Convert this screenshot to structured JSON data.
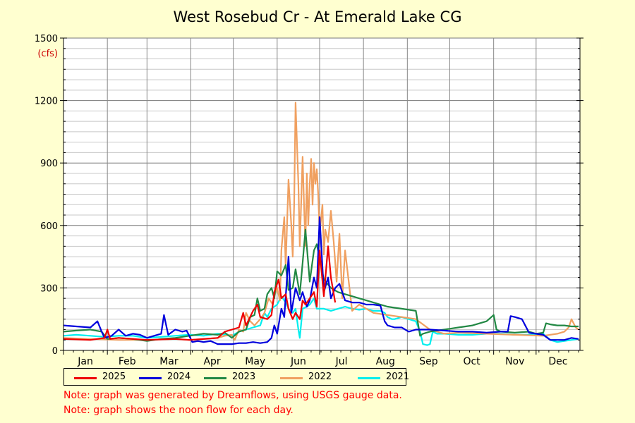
{
  "chart_data": {
    "type": "line",
    "title": "West Rosebud Cr - At Emerald Lake CG",
    "ylabel": "(cfs)",
    "ylim": [
      0,
      1500
    ],
    "yticks": [
      0,
      300,
      600,
      900,
      1200,
      1500
    ],
    "xlim": [
      1,
      366
    ],
    "x_unit": "day of year",
    "months": [
      "Jan",
      "Feb",
      "Mar",
      "Apr",
      "May",
      "Jun",
      "Jul",
      "Aug",
      "Sep",
      "Oct",
      "Nov",
      "Dec"
    ],
    "grid": true,
    "legend_position": "below plot",
    "series": [
      {
        "name": "2025",
        "color": "#ee0000",
        "x": [
          1,
          20,
          30,
          32,
          34,
          40,
          60,
          80,
          90,
          100,
          110,
          115,
          120,
          125,
          128,
          130,
          135,
          138,
          140,
          145,
          148,
          150,
          153,
          155,
          158,
          160,
          163,
          165,
          168,
          170,
          172,
          175,
          178,
          180,
          182,
          185,
          188,
          190,
          193
        ],
        "y": [
          55,
          50,
          60,
          100,
          55,
          60,
          50,
          55,
          50,
          55,
          60,
          90,
          100,
          110,
          180,
          120,
          190,
          220,
          160,
          150,
          170,
          280,
          340,
          250,
          270,
          200,
          150,
          180,
          150,
          240,
          220,
          250,
          280,
          210,
          480,
          260,
          500,
          350,
          230
        ]
      },
      {
        "name": "2024",
        "color": "#0000dd",
        "x": [
          1,
          10,
          20,
          25,
          28,
          30,
          35,
          40,
          45,
          50,
          55,
          60,
          65,
          70,
          72,
          75,
          80,
          85,
          88,
          92,
          96,
          100,
          105,
          110,
          115,
          120,
          125,
          130,
          135,
          140,
          145,
          148,
          150,
          152,
          155,
          157,
          160,
          162,
          165,
          168,
          170,
          173,
          175,
          178,
          180,
          182,
          185,
          188,
          190,
          193,
          196,
          200,
          205,
          210,
          215,
          220,
          225,
          228,
          230,
          235,
          240,
          245,
          250,
          260,
          270,
          280,
          290,
          300,
          310,
          315,
          317,
          320,
          325,
          330,
          335,
          340,
          345,
          350,
          355,
          360,
          365
        ],
        "y": [
          120,
          115,
          110,
          140,
          90,
          60,
          70,
          100,
          70,
          80,
          75,
          60,
          70,
          80,
          170,
          75,
          100,
          90,
          95,
          40,
          45,
          40,
          45,
          30,
          30,
          30,
          35,
          35,
          40,
          35,
          40,
          60,
          120,
          80,
          200,
          160,
          450,
          180,
          300,
          240,
          280,
          210,
          240,
          350,
          300,
          640,
          280,
          350,
          250,
          300,
          320,
          240,
          230,
          230,
          220,
          220,
          215,
          140,
          120,
          110,
          110,
          90,
          100,
          100,
          95,
          90,
          90,
          85,
          90,
          90,
          165,
          160,
          150,
          85,
          80,
          75,
          50,
          50,
          50,
          60,
          55
        ]
      },
      {
        "name": "2023",
        "color": "#228844",
        "x": [
          1,
          10,
          20,
          28,
          32,
          40,
          50,
          60,
          70,
          80,
          90,
          100,
          110,
          115,
          120,
          125,
          130,
          133,
          136,
          138,
          140,
          143,
          145,
          148,
          150,
          152,
          155,
          158,
          160,
          163,
          165,
          168,
          170,
          172,
          175,
          178,
          180,
          185,
          190,
          195,
          200,
          205,
          210,
          215,
          220,
          225,
          230,
          235,
          240,
          245,
          250,
          253,
          255,
          260,
          265,
          270,
          280,
          290,
          300,
          305,
          307,
          310,
          320,
          330,
          335,
          340,
          342,
          345,
          350,
          355,
          360,
          365
        ],
        "y": [
          90,
          95,
          100,
          90,
          55,
          60,
          55,
          45,
          55,
          60,
          70,
          80,
          75,
          85,
          60,
          90,
          100,
          160,
          170,
          250,
          190,
          200,
          270,
          300,
          250,
          380,
          360,
          410,
          290,
          300,
          390,
          270,
          420,
          580,
          330,
          480,
          510,
          340,
          300,
          280,
          270,
          260,
          250,
          240,
          230,
          220,
          210,
          205,
          200,
          195,
          190,
          70,
          80,
          90,
          95,
          100,
          110,
          120,
          140,
          170,
          100,
          90,
          85,
          90,
          80,
          85,
          130,
          125,
          120,
          120,
          115,
          115
        ]
      },
      {
        "name": "2022",
        "color": "#f0a060",
        "x": [
          1,
          20,
          40,
          60,
          80,
          90,
          100,
          110,
          115,
          120,
          122,
          125,
          128,
          130,
          133,
          136,
          140,
          143,
          146,
          149,
          150,
          152,
          154,
          155,
          157,
          158,
          160,
          162,
          163,
          164,
          165,
          167,
          168,
          170,
          171,
          172,
          173,
          174,
          175,
          176,
          177,
          178,
          179,
          180,
          181,
          182,
          184,
          185,
          186,
          188,
          190,
          192,
          194,
          196,
          198,
          200,
          205,
          210,
          215,
          220,
          230,
          240,
          250,
          260,
          270,
          280,
          300,
          320,
          340,
          350,
          355,
          358,
          360,
          363,
          365
        ],
        "y": [
          60,
          55,
          50,
          50,
          55,
          50,
          55,
          60,
          70,
          75,
          50,
          100,
          90,
          180,
          140,
          120,
          150,
          180,
          250,
          220,
          260,
          300,
          240,
          480,
          640,
          400,
          820,
          600,
          450,
          700,
          1190,
          800,
          500,
          930,
          700,
          500,
          850,
          600,
          800,
          920,
          700,
          900,
          800,
          870,
          750,
          560,
          700,
          460,
          580,
          520,
          670,
          520,
          330,
          560,
          250,
          480,
          190,
          220,
          200,
          180,
          170,
          160,
          150,
          100,
          80,
          85,
          80,
          75,
          70,
          80,
          90,
          110,
          150,
          110,
          100
        ]
      },
      {
        "name": "2021",
        "color": "#00eeee",
        "x": [
          1,
          10,
          20,
          30,
          40,
          50,
          60,
          70,
          80,
          90,
          100,
          110,
          120,
          125,
          130,
          135,
          140,
          143,
          145,
          148,
          150,
          152,
          155,
          158,
          160,
          163,
          165,
          167,
          168,
          170,
          173,
          175,
          178,
          180,
          185,
          190,
          195,
          200,
          205,
          210,
          215,
          220,
          225,
          228,
          230,
          233,
          235,
          240,
          245,
          250,
          253,
          255,
          258,
          260,
          262,
          265,
          270,
          280,
          290,
          300,
          310,
          320,
          330,
          340,
          345,
          350,
          360,
          365
        ],
        "y": [
          70,
          75,
          70,
          65,
          70,
          70,
          60,
          65,
          70,
          75,
          70,
          80,
          70,
          90,
          100,
          110,
          120,
          180,
          160,
          200,
          210,
          220,
          260,
          230,
          200,
          180,
          200,
          100,
          60,
          200,
          210,
          220,
          250,
          200,
          200,
          190,
          200,
          210,
          200,
          195,
          200,
          190,
          190,
          180,
          160,
          150,
          150,
          160,
          150,
          140,
          90,
          30,
          25,
          30,
          90,
          80,
          80,
          75,
          75,
          80,
          80,
          75,
          75,
          80,
          50,
          40,
          50,
          55
        ]
      }
    ]
  },
  "notes": [
    "Note: graph was generated by Dreamflows, using USGS gauge data.",
    "Note: graph shows the noon flow for each day."
  ]
}
